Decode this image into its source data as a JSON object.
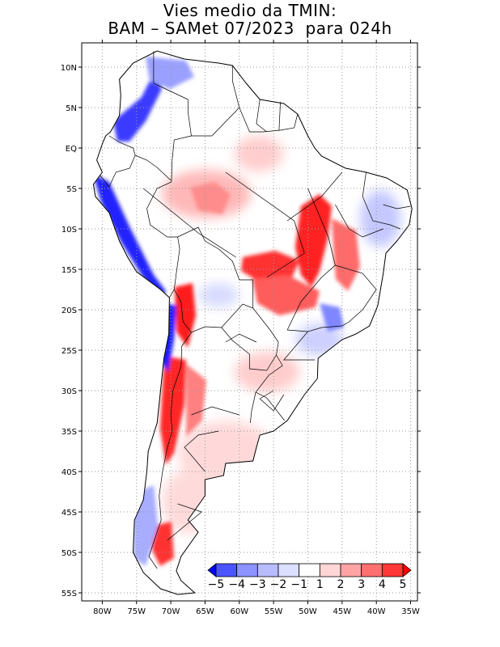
{
  "title": {
    "line1": "Vies medio da TMIN:",
    "line2": "BAM – SAMet 07/2023  para 024h"
  },
  "map": {
    "lon_range": [
      -83,
      -34
    ],
    "lat_range": [
      -56,
      13
    ],
    "x_ticks": [
      {
        "lon": -80,
        "label": "80W"
      },
      {
        "lon": -75,
        "label": "75W"
      },
      {
        "lon": -70,
        "label": "70W"
      },
      {
        "lon": -65,
        "label": "65W"
      },
      {
        "lon": -60,
        "label": "60W"
      },
      {
        "lon": -55,
        "label": "55W"
      },
      {
        "lon": -50,
        "label": "50W"
      },
      {
        "lon": -45,
        "label": "45W"
      },
      {
        "lon": -40,
        "label": "40W"
      },
      {
        "lon": -35,
        "label": "35W"
      }
    ],
    "y_ticks": [
      {
        "lat": 10,
        "label": "10N"
      },
      {
        "lat": 5,
        "label": "5N"
      },
      {
        "lat": 0,
        "label": "EQ"
      },
      {
        "lat": -5,
        "label": "5S"
      },
      {
        "lat": -10,
        "label": "10S"
      },
      {
        "lat": -15,
        "label": "15S"
      },
      {
        "lat": -20,
        "label": "20S"
      },
      {
        "lat": -25,
        "label": "25S"
      },
      {
        "lat": -30,
        "label": "30S"
      },
      {
        "lat": -35,
        "label": "35S"
      },
      {
        "lat": -40,
        "label": "40S"
      },
      {
        "lat": -45,
        "label": "45S"
      },
      {
        "lat": -50,
        "label": "50S"
      },
      {
        "lat": -55,
        "label": "55S"
      }
    ],
    "grid": "dotted",
    "continent_outline": [
      [
        -77.5,
        8.5
      ],
      [
        -75.5,
        10.5
      ],
      [
        -72,
        12
      ],
      [
        -68,
        11
      ],
      [
        -63,
        10.5
      ],
      [
        -61,
        10.2
      ],
      [
        -59,
        8
      ],
      [
        -57,
        6
      ],
      [
        -53.5,
        5.5
      ],
      [
        -51.5,
        4.2
      ],
      [
        -50,
        1.5
      ],
      [
        -49,
        0
      ],
      [
        -48,
        -1
      ],
      [
        -44.5,
        -2.5
      ],
      [
        -41.5,
        -3
      ],
      [
        -38.5,
        -3.7
      ],
      [
        -35.5,
        -5.2
      ],
      [
        -34.8,
        -7.5
      ],
      [
        -35.2,
        -9.5
      ],
      [
        -37,
        -11.5
      ],
      [
        -38.6,
        -13
      ],
      [
        -39,
        -15.5
      ],
      [
        -39.8,
        -19.5
      ],
      [
        -41,
        -22
      ],
      [
        -43,
        -23
      ],
      [
        -45,
        -23.7
      ],
      [
        -48.5,
        -26
      ],
      [
        -48.6,
        -28.5
      ],
      [
        -50.5,
        -30.5
      ],
      [
        -53,
        -33.7
      ],
      [
        -55,
        -35
      ],
      [
        -57,
        -35.5
      ],
      [
        -57.5,
        -37
      ],
      [
        -58,
        -38.7
      ],
      [
        -62,
        -39
      ],
      [
        -62.3,
        -40.5
      ],
      [
        -65,
        -41
      ],
      [
        -65,
        -43
      ],
      [
        -67.5,
        -46
      ],
      [
        -66,
        -47.5
      ],
      [
        -68.5,
        -50.5
      ],
      [
        -69.2,
        -52.3
      ],
      [
        -68.5,
        -53.5
      ],
      [
        -66.5,
        -55
      ],
      [
        -69,
        -55.2
      ],
      [
        -71.5,
        -54.5
      ],
      [
        -74,
        -52.5
      ],
      [
        -75.5,
        -50
      ],
      [
        -75.3,
        -46
      ],
      [
        -74,
        -43.5
      ],
      [
        -73.5,
        -40
      ],
      [
        -73.3,
        -37.5
      ],
      [
        -72,
        -34
      ],
      [
        -71.5,
        -30
      ],
      [
        -71,
        -26
      ],
      [
        -70.3,
        -23
      ],
      [
        -70.2,
        -18.5
      ],
      [
        -71.5,
        -17.5
      ],
      [
        -75,
        -15.3
      ],
      [
        -76.3,
        -13.5
      ],
      [
        -77.5,
        -11.5
      ],
      [
        -79,
        -8
      ],
      [
        -81,
        -6
      ],
      [
        -81.3,
        -4.5
      ],
      [
        -80,
        -3
      ],
      [
        -80.8,
        -1.5
      ],
      [
        -80,
        0.5
      ],
      [
        -79.5,
        1.5
      ],
      [
        -78.8,
        2
      ],
      [
        -77.5,
        4
      ],
      [
        -77.3,
        6.5
      ],
      [
        -77.5,
        8.5
      ]
    ],
    "borders": [
      [
        [
          -72.5,
          12
        ],
        [
          -72.5,
          8
        ],
        [
          -70,
          7
        ],
        [
          -67.5,
          6
        ],
        [
          -67.5,
          4.5
        ],
        [
          -67,
          1.5
        ],
        [
          -64,
          1.5
        ],
        [
          -60,
          5
        ],
        [
          -61,
          8.3
        ],
        [
          -61,
          10.2
        ]
      ],
      [
        [
          -60,
          5
        ],
        [
          -58.5,
          2
        ],
        [
          -56.5,
          2
        ],
        [
          -54,
          2.2
        ],
        [
          -52,
          2.5
        ],
        [
          -51.5,
          4.2
        ]
      ],
      [
        [
          -57,
          6
        ],
        [
          -57.5,
          3
        ],
        [
          -56,
          2
        ]
      ],
      [
        [
          -54,
          5.7
        ],
        [
          -54.2,
          2.2
        ]
      ],
      [
        [
          -67,
          1.5
        ],
        [
          -69.5,
          1
        ],
        [
          -69.8,
          -1.5
        ],
        [
          -69.9,
          -4.2
        ],
        [
          -72,
          -5
        ],
        [
          -73.5,
          -7.5
        ],
        [
          -73,
          -9.5
        ],
        [
          -70.5,
          -11
        ],
        [
          -69,
          -11
        ],
        [
          -66,
          -9.8
        ],
        [
          -65,
          -11.5
        ],
        [
          -63,
          -12.5
        ],
        [
          -61,
          -14
        ],
        [
          -60,
          -16.3
        ],
        [
          -58,
          -16.3
        ],
        [
          -58,
          -19.8
        ],
        [
          -59.5,
          -19.3
        ],
        [
          -62.6,
          -22.2
        ]
      ],
      [
        [
          -79,
          1.5
        ],
        [
          -77.5,
          0.7
        ],
        [
          -75.5,
          0
        ],
        [
          -75.2,
          -0.9
        ],
        [
          -73.5,
          -1.5
        ],
        [
          -72,
          -2.4
        ],
        [
          -70,
          -4
        ]
      ],
      [
        [
          -80.3,
          -3.4
        ],
        [
          -79,
          -4.8
        ],
        [
          -78,
          -3
        ],
        [
          -76,
          -2.5
        ],
        [
          -75.2,
          -0.9
        ]
      ],
      [
        [
          -69,
          -11
        ],
        [
          -68.7,
          -12.5
        ],
        [
          -69.2,
          -15.5
        ],
        [
          -69.5,
          -17.5
        ],
        [
          -70.2,
          -18.5
        ]
      ],
      [
        [
          -69.5,
          -17.5
        ],
        [
          -68.5,
          -19
        ],
        [
          -68.2,
          -21.5
        ],
        [
          -67,
          -22.8
        ],
        [
          -65,
          -22.1
        ],
        [
          -62.6,
          -22.2
        ]
      ],
      [
        [
          -62.6,
          -22.2
        ],
        [
          -61,
          -23.8
        ],
        [
          -58.5,
          -25.5
        ],
        [
          -58.5,
          -27.3
        ],
        [
          -56,
          -27.5
        ],
        [
          -54.6,
          -25.6
        ],
        [
          -54.3,
          -24
        ],
        [
          -55.5,
          -22.5
        ],
        [
          -58,
          -19.8
        ]
      ],
      [
        [
          -54.6,
          -25.6
        ],
        [
          -53.7,
          -26.9
        ],
        [
          -55.7,
          -28.1
        ],
        [
          -57.6,
          -30.2
        ],
        [
          -56,
          -30.9
        ],
        [
          -53.4,
          -33.7
        ]
      ],
      [
        [
          -57.6,
          -30.2
        ],
        [
          -58.2,
          -32.5
        ],
        [
          -58.4,
          -34
        ]
      ],
      [
        [
          -67,
          -22.8
        ],
        [
          -68.4,
          -24.5
        ],
        [
          -68.5,
          -27
        ],
        [
          -69.7,
          -30
        ],
        [
          -70,
          -33
        ],
        [
          -69.8,
          -35
        ],
        [
          -70.5,
          -37
        ],
        [
          -71.2,
          -40
        ],
        [
          -71.7,
          -43
        ],
        [
          -71.4,
          -46
        ],
        [
          -72.4,
          -48.5
        ],
        [
          -73.2,
          -50.5
        ],
        [
          -72,
          -52
        ]
      ],
      [
        [
          -74,
          -5
        ],
        [
          -66,
          -10.5
        ],
        [
          -60.5,
          -13.5
        ]
      ],
      [
        [
          -62,
          -3
        ],
        [
          -52,
          -9
        ],
        [
          -50.5,
          -13
        ],
        [
          -56,
          -16
        ]
      ],
      [
        [
          -53,
          -9
        ],
        [
          -48,
          -6
        ],
        [
          -45,
          -3
        ]
      ],
      [
        [
          -50,
          -5
        ],
        [
          -47,
          -11
        ],
        [
          -46,
          -14.5
        ],
        [
          -48,
          -16
        ],
        [
          -51,
          -19
        ],
        [
          -53,
          -22.5
        ]
      ],
      [
        [
          -46,
          -14.5
        ],
        [
          -42,
          -15.5
        ],
        [
          -40,
          -17.5
        ],
        [
          -42,
          -20
        ]
      ],
      [
        [
          -46,
          -7
        ],
        [
          -44,
          -10
        ],
        [
          -42,
          -11
        ],
        [
          -39,
          -10
        ]
      ],
      [
        [
          -41.5,
          -3
        ],
        [
          -42,
          -6
        ],
        [
          -40.5,
          -9
        ],
        [
          -38,
          -9.5
        ],
        [
          -36.5,
          -10
        ]
      ],
      [
        [
          -39,
          -7
        ],
        [
          -37,
          -7.5
        ],
        [
          -35,
          -7.2
        ]
      ],
      [
        [
          -53,
          -22.5
        ],
        [
          -50,
          -22.7
        ],
        [
          -48,
          -22.2
        ],
        [
          -45,
          -22
        ],
        [
          -44,
          -21.5
        ],
        [
          -42,
          -20
        ]
      ],
      [
        [
          -50,
          -22.7
        ],
        [
          -53.5,
          -26.2
        ],
        [
          -49,
          -26.2
        ]
      ],
      [
        [
          -55,
          -30
        ],
        [
          -57,
          -31
        ],
        [
          -55,
          -32.5
        ],
        [
          -53.5,
          -30.5
        ]
      ],
      [
        [
          -57.5,
          -24
        ],
        [
          -60,
          -23
        ],
        [
          -62,
          -24
        ]
      ],
      [
        [
          -63,
          -35
        ],
        [
          -66,
          -35.5
        ],
        [
          -68,
          -37
        ],
        [
          -65,
          -40
        ]
      ],
      [
        [
          -60,
          -33
        ],
        [
          -64,
          -32
        ],
        [
          -67,
          -33
        ]
      ],
      [
        [
          -69,
          -44
        ],
        [
          -65.5,
          -45
        ],
        [
          -70.5,
          -48.5
        ]
      ]
    ],
    "colorbar": {
      "labels": [
        "−5",
        "−4",
        "−3",
        "−2",
        "−1",
        "1",
        "2",
        "3",
        "4",
        "5"
      ],
      "colors": [
        "#0000ff",
        "#4a55ff",
        "#8c93ff",
        "#b8bcff",
        "#dcdfff",
        "#ffffff",
        "#ffd6d6",
        "#ffa3a3",
        "#ff7070",
        "#ff3838",
        "#ff0000"
      ]
    }
  }
}
